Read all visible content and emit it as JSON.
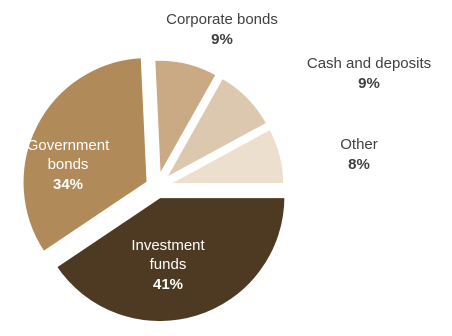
{
  "chart_data": {
    "type": "pie",
    "slices": [
      {
        "label_lines": [
          "Investment",
          "funds"
        ],
        "value": 41,
        "value_label": "41%",
        "color": "#4e3a22",
        "text_color": "#ffffff"
      },
      {
        "label_lines": [
          "Government",
          "bonds"
        ],
        "value": 34,
        "value_label": "34%",
        "color": "#b08a58",
        "text_color": "#ffffff"
      },
      {
        "label_lines": [
          "Corporate bonds"
        ],
        "value": 9,
        "value_label": "9%",
        "color": "#c9aa85",
        "text_color": "#404040"
      },
      {
        "label_lines": [
          "Cash and deposits"
        ],
        "value": 9,
        "value_label": "9%",
        "color": "#dcc8ae",
        "text_color": "#404040"
      },
      {
        "label_lines": [
          "Other"
        ],
        "value": 8,
        "value_label": "8%",
        "color": "#ecdfcd",
        "text_color": "#404040"
      }
    ]
  }
}
